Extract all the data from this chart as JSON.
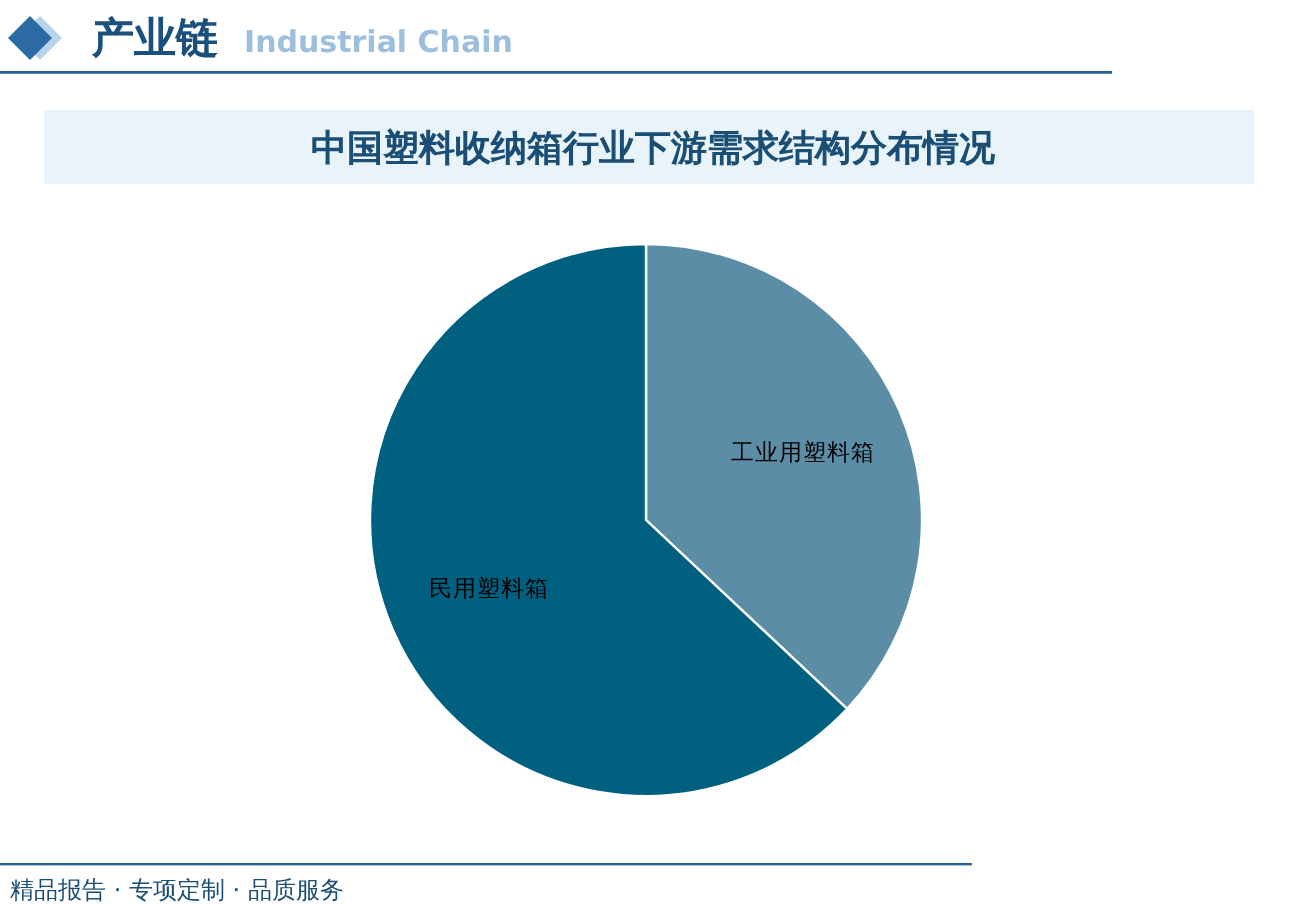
{
  "chart_data": {
    "type": "pie",
    "title": "中国塑料收纳箱行业下游需求结构分布情况",
    "categories": [
      "工业用塑料箱",
      "民用塑料箱"
    ],
    "values": [
      37,
      63
    ],
    "colors": [
      "#5b8ea6",
      "#00607f"
    ],
    "annotations": [
      "产业链",
      "Industrial Chain",
      "精品报告 · 专项定制 · 品质服务"
    ]
  }
}
